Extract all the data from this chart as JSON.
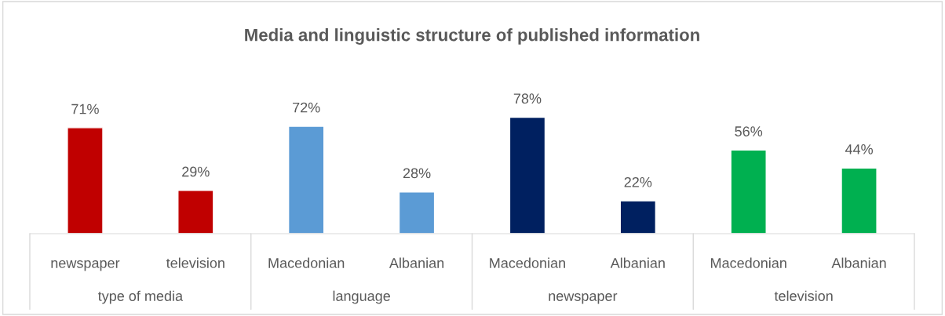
{
  "chart_data": {
    "type": "bar",
    "title": "Media and linguistic structure of published information",
    "categories": [
      "newspaper",
      "television",
      "Macedonian",
      "Albanian",
      "Macedonian",
      "Albanian",
      "Macedonian",
      "Albanian"
    ],
    "values": [
      71,
      29,
      72,
      28,
      78,
      22,
      56,
      44
    ],
    "colors": [
      "#c00000",
      "#c00000",
      "#5b9bd5",
      "#5b9bd5",
      "#002060",
      "#002060",
      "#00b050",
      "#00b050"
    ],
    "value_labels": [
      "71%",
      "29%",
      "72%",
      "28%",
      "78%",
      "22%",
      "56%",
      "44%"
    ],
    "annotations": [
      "type of media",
      "language",
      "newspaper",
      "television"
    ],
    "grid": false,
    "legend": false
  }
}
